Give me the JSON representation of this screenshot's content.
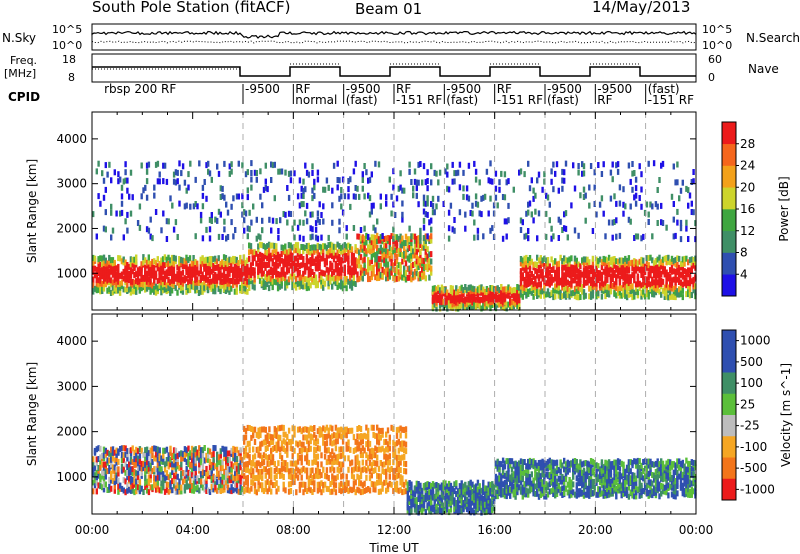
{
  "header": {
    "station": "South Pole Station (fitACF)",
    "beam": "Beam 01",
    "date": "14/May/2013"
  },
  "strip": {
    "nsky_label": "N.Sky",
    "nsky_ticks": [
      "10^5",
      "10^0"
    ],
    "nsearch_label": "N.Search",
    "nsearch_ticks": [
      "10^5",
      "10^0"
    ],
    "freq_label": "Freq.",
    "freq_unit": "[MHz]",
    "freq_ticks": [
      "18",
      "8"
    ],
    "nave_label": "Nave",
    "nave_ticks": [
      "60",
      "0"
    ],
    "cpid_label": "CPID"
  },
  "cpid_segments": [
    {
      "t": 0.4,
      "label": "rbsp 200 RF"
    },
    {
      "t": 6.0,
      "label": "-9500"
    },
    {
      "t": 8.0,
      "label": "RF"
    },
    {
      "t": 8.0,
      "label": "normal"
    },
    {
      "t": 10.0,
      "label": "-9500"
    },
    {
      "t": 10.0,
      "label": "(fast)"
    },
    {
      "t": 12.0,
      "label": "RF"
    },
    {
      "t": 12.0,
      "label": "-151 RF"
    },
    {
      "t": 14.0,
      "label": "-9500"
    },
    {
      "t": 14.0,
      "label": "(fast)"
    },
    {
      "t": 16.0,
      "label": "RF"
    },
    {
      "t": 16.0,
      "label": "-151 RF"
    },
    {
      "t": 18.0,
      "label": "-9500"
    },
    {
      "t": 18.0,
      "label": "(fast)"
    },
    {
      "t": 20.0,
      "label": "-9500"
    },
    {
      "t": 20.0,
      "label": "RF"
    },
    {
      "t": 22.0,
      "label": "(fast)"
    },
    {
      "t": 22.0,
      "label": "-151 RF"
    }
  ],
  "chart_data": [
    {
      "type": "heatmap",
      "panel": "power",
      "ylabel": "Slant Range [km]",
      "xlabel": "",
      "xlim": [
        0,
        24
      ],
      "ylim": [
        180,
        4600
      ],
      "yticks": [
        1000,
        2000,
        3000,
        4000
      ],
      "colorbar": {
        "label": "Power [dB]",
        "ticks": [
          4,
          8,
          12,
          16,
          20,
          24,
          28
        ],
        "range": [
          0,
          32
        ],
        "colors": [
          "#1e10e6",
          "#2f4fb0",
          "#3f8f66",
          "#3fa640",
          "#cdd42c",
          "#f3a11a",
          "#f5661c",
          "#ec1b1b"
        ]
      },
      "features": [
        {
          "t0": 0.0,
          "t1": 6.2,
          "r0": 600,
          "r1": 1400,
          "level": "high"
        },
        {
          "t0": 6.2,
          "t1": 10.5,
          "r0": 700,
          "r1": 1700,
          "level": "high"
        },
        {
          "t0": 10.5,
          "t1": 13.5,
          "r0": 900,
          "r1": 1900,
          "level": "mixed"
        },
        {
          "t0": 13.5,
          "t1": 17.0,
          "r0": 250,
          "r1": 700,
          "level": "high"
        },
        {
          "t0": 17.0,
          "t1": 24.0,
          "r0": 500,
          "r1": 1400,
          "level": "high"
        },
        {
          "t0": 0.0,
          "t1": 24.0,
          "r0": 1800,
          "r1": 3600,
          "level": "low"
        }
      ]
    },
    {
      "type": "heatmap",
      "panel": "velocity",
      "ylabel": "Slant Range [km]",
      "xlabel": "Time UT",
      "xlim": [
        0,
        24
      ],
      "ylim": [
        180,
        4600
      ],
      "yticks": [
        1000,
        2000,
        3000,
        4000
      ],
      "xticks": [
        "00:00",
        "04:00",
        "08:00",
        "12:00",
        "16:00",
        "20:00",
        "00:00"
      ],
      "colorbar": {
        "label": "Velocity [m s^-1]",
        "ticks": [
          "1000",
          "500",
          "100",
          "25",
          "-25",
          "-100",
          "-500",
          "-1000"
        ],
        "colors": [
          "#2f4fb0",
          "#2f4fb0",
          "#3f8f66",
          "#5bbf3a",
          "#bdbdbd",
          "#f5a623",
          "#f3751a",
          "#ec1b1b"
        ]
      },
      "features": [
        {
          "t0": 0.0,
          "t1": 6.0,
          "r0": 700,
          "r1": 1700,
          "level": "mixed-neg"
        },
        {
          "t0": 6.0,
          "t1": 12.5,
          "r0": 700,
          "r1": 2200,
          "level": "neg"
        },
        {
          "t0": 12.5,
          "t1": 16.0,
          "r0": 250,
          "r1": 900,
          "level": "pos"
        },
        {
          "t0": 16.0,
          "t1": 24.0,
          "r0": 600,
          "r1": 1400,
          "level": "pos"
        }
      ]
    }
  ]
}
